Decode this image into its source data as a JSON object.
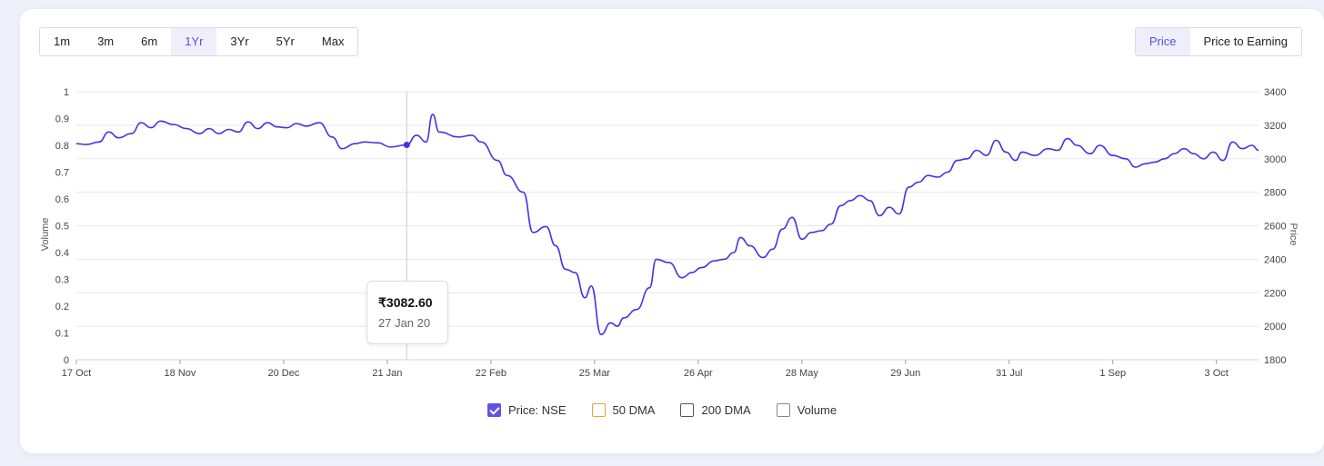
{
  "range_buttons": [
    "1m",
    "3m",
    "6m",
    "1Yr",
    "3Yr",
    "5Yr",
    "Max"
  ],
  "active_range": "1Yr",
  "view_buttons": [
    "Price",
    "Price to Earning"
  ],
  "active_view": "Price",
  "tooltip": {
    "price": "₹3082.60",
    "date": "27 Jan 20"
  },
  "legend": [
    {
      "label": "Price: NSE",
      "checked": true,
      "color": "#6152e0"
    },
    {
      "label": "50 DMA",
      "checked": false,
      "color": "#e8a33d"
    },
    {
      "label": "200 DMA",
      "checked": false,
      "color": "#555555"
    },
    {
      "label": "Volume",
      "checked": false,
      "color": "#888888"
    }
  ],
  "chart_data": {
    "type": "line",
    "xlabel": "",
    "y_left_label": "Volume",
    "y_right_label": "Price",
    "y_left_ticks": [
      "0",
      "0.1",
      "0.2",
      "0.3",
      "0.4",
      "0.5",
      "0.6",
      "0.7",
      "0.8",
      "0.9",
      "1"
    ],
    "y_right_ticks": [
      "1800",
      "2000",
      "2200",
      "2400",
      "2600",
      "2800",
      "3000",
      "3200",
      "3400"
    ],
    "y_right_range": [
      1800,
      3400
    ],
    "x_ticks": [
      "17 Oct",
      "18 Nov",
      "20 Dec",
      "21 Jan",
      "22 Feb",
      "25 Mar",
      "26 Apr",
      "28 May",
      "29 Jun",
      "31 Jul",
      "1 Sep",
      "3 Oct"
    ],
    "x_tick_dates": [
      "2019-10-17",
      "2019-11-18",
      "2019-12-20",
      "2020-01-21",
      "2020-02-22",
      "2020-03-25",
      "2020-04-26",
      "2020-05-28",
      "2020-06-29",
      "2020-07-31",
      "2020-09-01",
      "2020-10-03"
    ],
    "x_domain": [
      "2019-10-17",
      "2020-10-16"
    ],
    "grid": true,
    "legend_position": "bottom",
    "line_color": "#4433e6",
    "highlight": {
      "date": "2020-01-27",
      "value": 3082.6
    },
    "series": [
      {
        "name": "Price: NSE",
        "points": [
          [
            "2019-10-17",
            3090
          ],
          [
            "2019-10-20",
            3085
          ],
          [
            "2019-10-24",
            3100
          ],
          [
            "2019-10-27",
            3160
          ],
          [
            "2019-10-30",
            3125
          ],
          [
            "2019-11-03",
            3150
          ],
          [
            "2019-11-06",
            3215
          ],
          [
            "2019-11-09",
            3185
          ],
          [
            "2019-11-12",
            3225
          ],
          [
            "2019-11-16",
            3205
          ],
          [
            "2019-11-20",
            3180
          ],
          [
            "2019-11-24",
            3150
          ],
          [
            "2019-11-27",
            3180
          ],
          [
            "2019-11-30",
            3150
          ],
          [
            "2019-12-03",
            3175
          ],
          [
            "2019-12-06",
            3160
          ],
          [
            "2019-12-09",
            3220
          ],
          [
            "2019-12-12",
            3180
          ],
          [
            "2019-12-15",
            3215
          ],
          [
            "2019-12-18",
            3190
          ],
          [
            "2019-12-21",
            3185
          ],
          [
            "2019-12-24",
            3210
          ],
          [
            "2019-12-27",
            3195
          ],
          [
            "2019-12-31",
            3215
          ],
          [
            "2020-01-04",
            3130
          ],
          [
            "2020-01-07",
            3060
          ],
          [
            "2020-01-11",
            3090
          ],
          [
            "2020-01-14",
            3100
          ],
          [
            "2020-01-18",
            3095
          ],
          [
            "2020-01-22",
            3070
          ],
          [
            "2020-01-27",
            3082.6
          ],
          [
            "2020-01-30",
            3140
          ],
          [
            "2020-02-02",
            3100
          ],
          [
            "2020-02-04",
            3265
          ],
          [
            "2020-02-06",
            3160
          ],
          [
            "2020-02-12",
            3130
          ],
          [
            "2020-02-16",
            3140
          ],
          [
            "2020-02-19",
            3100
          ],
          [
            "2020-02-24",
            2990
          ],
          [
            "2020-02-27",
            2900
          ],
          [
            "2020-03-03",
            2800
          ],
          [
            "2020-03-06",
            2560
          ],
          [
            "2020-03-10",
            2595
          ],
          [
            "2020-03-13",
            2480
          ],
          [
            "2020-03-16",
            2340
          ],
          [
            "2020-03-19",
            2320
          ],
          [
            "2020-03-22",
            2170
          ],
          [
            "2020-03-24",
            2240
          ],
          [
            "2020-03-27",
            1950
          ],
          [
            "2020-03-30",
            2020
          ],
          [
            "2020-04-01",
            2000
          ],
          [
            "2020-04-03",
            2050
          ],
          [
            "2020-04-07",
            2100
          ],
          [
            "2020-04-11",
            2230
          ],
          [
            "2020-04-13",
            2400
          ],
          [
            "2020-04-17",
            2380
          ],
          [
            "2020-04-21",
            2290
          ],
          [
            "2020-04-24",
            2320
          ],
          [
            "2020-04-27",
            2350
          ],
          [
            "2020-05-01",
            2390
          ],
          [
            "2020-05-04",
            2400
          ],
          [
            "2020-05-07",
            2440
          ],
          [
            "2020-05-09",
            2530
          ],
          [
            "2020-05-12",
            2480
          ],
          [
            "2020-05-16",
            2410
          ],
          [
            "2020-05-19",
            2460
          ],
          [
            "2020-05-22",
            2580
          ],
          [
            "2020-05-25",
            2650
          ],
          [
            "2020-05-28",
            2520
          ],
          [
            "2020-05-31",
            2560
          ],
          [
            "2020-06-03",
            2570
          ],
          [
            "2020-06-06",
            2610
          ],
          [
            "2020-06-09",
            2720
          ],
          [
            "2020-06-12",
            2750
          ],
          [
            "2020-06-15",
            2780
          ],
          [
            "2020-06-18",
            2750
          ],
          [
            "2020-06-21",
            2660
          ],
          [
            "2020-06-24",
            2710
          ],
          [
            "2020-06-27",
            2670
          ],
          [
            "2020-06-30",
            2830
          ],
          [
            "2020-07-03",
            2860
          ],
          [
            "2020-07-06",
            2900
          ],
          [
            "2020-07-09",
            2890
          ],
          [
            "2020-07-12",
            2920
          ],
          [
            "2020-07-15",
            2990
          ],
          [
            "2020-07-18",
            3000
          ],
          [
            "2020-07-21",
            3050
          ],
          [
            "2020-07-24",
            3020
          ],
          [
            "2020-07-27",
            3110
          ],
          [
            "2020-07-30",
            3040
          ],
          [
            "2020-08-02",
            2990
          ],
          [
            "2020-08-04",
            3040
          ],
          [
            "2020-08-08",
            3020
          ],
          [
            "2020-08-12",
            3060
          ],
          [
            "2020-08-15",
            3050
          ],
          [
            "2020-08-18",
            3120
          ],
          [
            "2020-08-21",
            3080
          ],
          [
            "2020-08-25",
            3030
          ],
          [
            "2020-08-28",
            3080
          ],
          [
            "2020-09-01",
            3020
          ],
          [
            "2020-09-05",
            3000
          ],
          [
            "2020-09-08",
            2950
          ],
          [
            "2020-09-11",
            2970
          ],
          [
            "2020-09-14",
            2980
          ],
          [
            "2020-09-17",
            3000
          ],
          [
            "2020-09-20",
            3030
          ],
          [
            "2020-09-23",
            3060
          ],
          [
            "2020-09-26",
            3030
          ],
          [
            "2020-09-29",
            3000
          ],
          [
            "2020-10-02",
            3040
          ],
          [
            "2020-10-05",
            2990
          ],
          [
            "2020-10-08",
            3100
          ],
          [
            "2020-10-11",
            3060
          ],
          [
            "2020-10-14",
            3080
          ],
          [
            "2020-10-16",
            3050
          ]
        ]
      }
    ]
  }
}
